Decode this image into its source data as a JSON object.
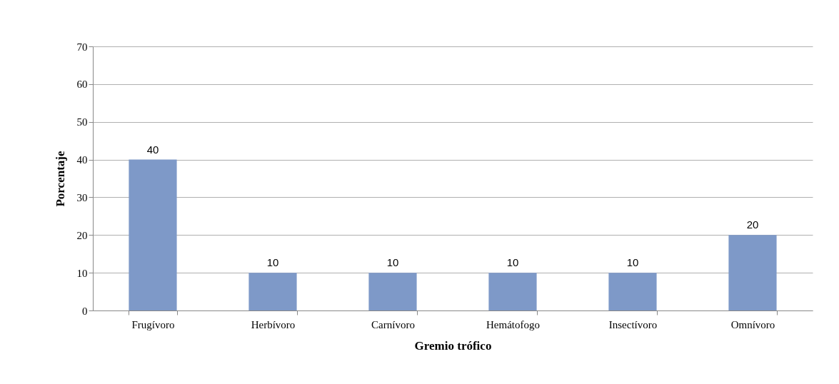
{
  "chart_data": {
    "type": "bar",
    "xlabel": "Gremio trófico",
    "ylabel": "Porcentaje",
    "categories": [
      "Frugívoro",
      "Herbívoro",
      "Carnívoro",
      "Hemátofogo",
      "Insectívoro",
      "Omnívoro"
    ],
    "values": [
      40,
      10,
      10,
      10,
      10,
      20
    ],
    "color": "#7e99c8",
    "ylim": [
      0,
      70
    ],
    "yticks": [
      0,
      10,
      20,
      30,
      40,
      50,
      60,
      70
    ],
    "grid": "y",
    "data_labels": true
  }
}
